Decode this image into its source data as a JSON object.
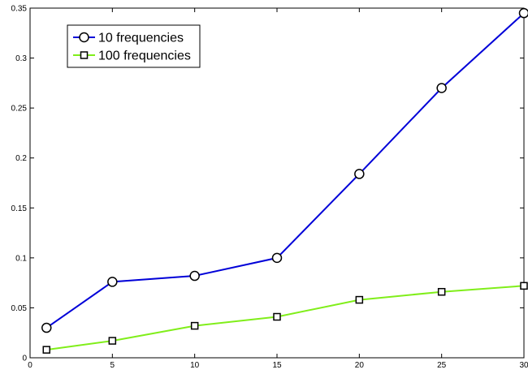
{
  "chart_data": {
    "type": "line",
    "title": "",
    "xlabel": "",
    "ylabel": "",
    "x": [
      1,
      5,
      10,
      15,
      20,
      25,
      30
    ],
    "xlim": [
      0,
      30
    ],
    "ylim": [
      0,
      0.35
    ],
    "xticks": [
      0,
      5,
      10,
      15,
      20,
      25,
      30
    ],
    "yticks": [
      0,
      0.05,
      0.1,
      0.15,
      0.2,
      0.25,
      0.3,
      0.35
    ],
    "xtick_labels": [
      "0",
      "5",
      "10",
      "15",
      "20",
      "25",
      "30"
    ],
    "ytick_labels": [
      "0",
      "0.05",
      "0.1",
      "0.15",
      "0.2",
      "0.25",
      "0.3",
      "0.35"
    ],
    "grid": false,
    "legend_position": "top-left",
    "series": [
      {
        "name": "10 frequencies",
        "values": [
          0.03,
          0.076,
          0.082,
          0.1,
          0.184,
          0.27,
          0.345
        ],
        "color": "#0000d8",
        "marker": "circle"
      },
      {
        "name": "100 frequencies",
        "values": [
          0.008,
          0.017,
          0.032,
          0.041,
          0.058,
          0.066,
          0.072
        ],
        "color": "#80ee1a",
        "marker": "square"
      }
    ]
  }
}
